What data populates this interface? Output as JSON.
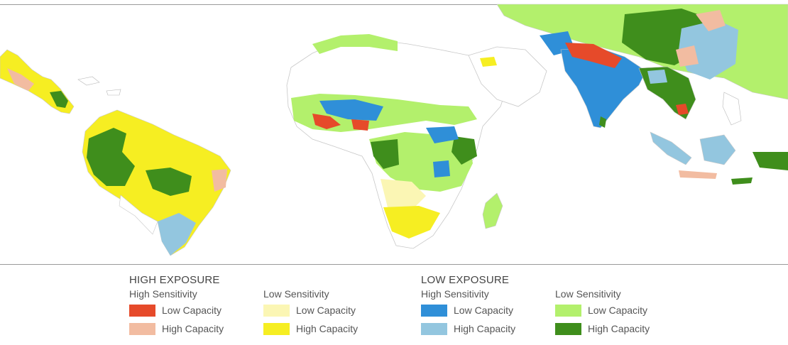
{
  "map": {
    "base_land_color": "#ffffff",
    "border_color": "#c8c8c8"
  },
  "legend": {
    "high_exposure": {
      "title": "HIGH EXPOSURE",
      "high_sensitivity": {
        "title": "High Sensitivity",
        "low_capacity": {
          "label": "Low Capacity",
          "color": "#e64a2a"
        },
        "high_capacity": {
          "label": "High Capacity",
          "color": "#f2bca1"
        }
      },
      "low_sensitivity": {
        "title": "Low Sensitivity",
        "low_capacity": {
          "label": "Low Capacity",
          "color": "#fbf6b4"
        },
        "high_capacity": {
          "label": "High Capacity",
          "color": "#f6ee22"
        }
      }
    },
    "low_exposure": {
      "title": "LOW EXPOSURE",
      "high_sensitivity": {
        "title": "High Sensitivity",
        "low_capacity": {
          "label": "Low Capacity",
          "color": "#2f8fd8"
        },
        "high_capacity": {
          "label": "High Capacity",
          "color": "#93c6df"
        }
      },
      "low_sensitivity": {
        "title": "Low Sensitivity",
        "low_capacity": {
          "label": "Low Capacity",
          "color": "#b3f06c"
        },
        "high_capacity": {
          "label": "High Capacity",
          "color": "#3f8e1c"
        }
      }
    }
  }
}
